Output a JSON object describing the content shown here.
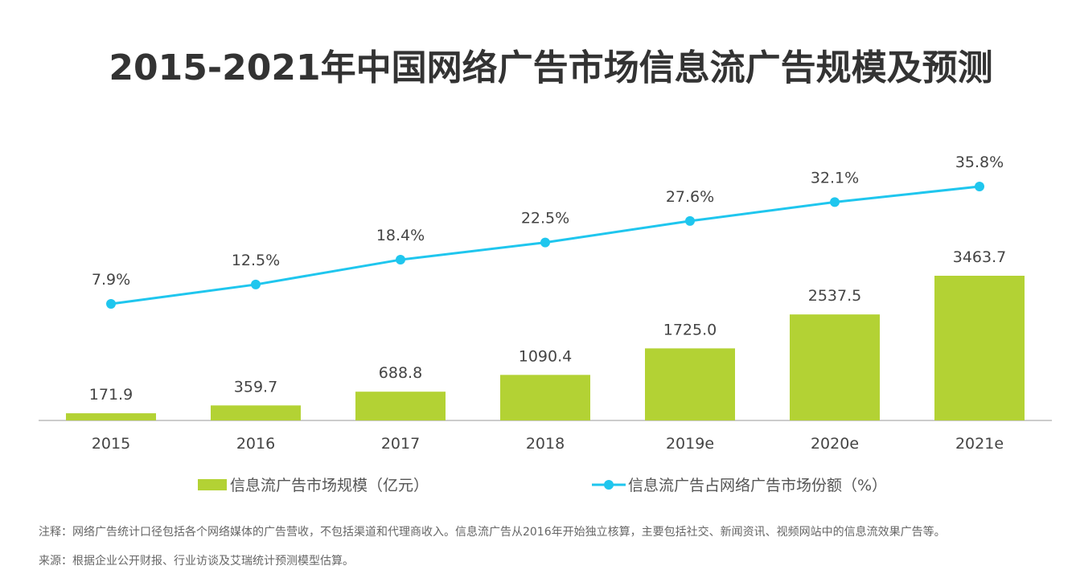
{
  "title": "2015-2021年中国网络广告市场信息流广告规模及预测",
  "chart_data": {
    "type": "bar+line",
    "categories": [
      "2015",
      "2016",
      "2017",
      "2018",
      "2019e",
      "2020e",
      "2021e"
    ],
    "series": [
      {
        "name": "信息流广告市场规模（亿元）",
        "type": "bar",
        "axis": "left",
        "color": "#b3d234",
        "values": [
          171.9,
          359.7,
          688.8,
          1090.4,
          1725.0,
          2537.5,
          3463.7
        ],
        "labels": [
          "171.9",
          "359.7",
          "688.8",
          "1090.4",
          "1725.0",
          "2537.5",
          "3463.7"
        ]
      },
      {
        "name": "信息流广告占网络广告市场份额（%）",
        "type": "line",
        "axis": "right",
        "color": "#1fc6ee",
        "values": [
          7.9,
          12.5,
          18.4,
          22.5,
          27.6,
          32.1,
          35.8
        ],
        "labels": [
          "7.9%",
          "12.5%",
          "18.4%",
          "22.5%",
          "27.6%",
          "32.1%",
          "35.8%"
        ]
      }
    ],
    "legend_position": "bottom",
    "grid": false
  },
  "notes": {
    "note": "注释：网络广告统计口径包括各个网络媒体的广告营收，不包括渠道和代理商收入。信息流广告从2016年开始独立核算，主要包括社交、新闻资讯、视频网站中的信息流效果广告等。",
    "source": "来源：根据企业公开财报、行业访谈及艾瑞统计预测模型估算。"
  }
}
